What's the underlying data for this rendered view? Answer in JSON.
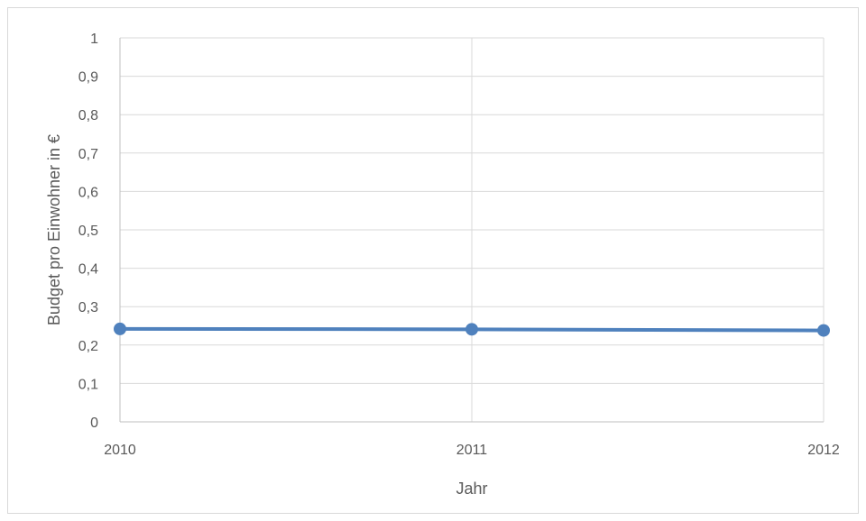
{
  "chart_data": {
    "type": "line",
    "title": "",
    "xlabel": "Jahr",
    "ylabel": "Budget pro Einwohner in €",
    "categories": [
      "2010",
      "2011",
      "2012"
    ],
    "series": [
      {
        "values": [
          0.242,
          0.241,
          0.238
        ],
        "color": "#4f81bd"
      }
    ],
    "ylim": [
      0,
      1
    ],
    "yticks": [
      "0",
      "0,1",
      "0,2",
      "0,3",
      "0,4",
      "0,5",
      "0,6",
      "0,7",
      "0,8",
      "0,9",
      "1"
    ],
    "grid": true,
    "legend": "none"
  }
}
